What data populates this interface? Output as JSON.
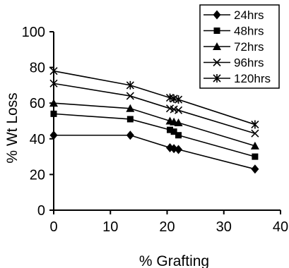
{
  "chart_data": {
    "type": "line",
    "xlabel": "% Grafting",
    "ylabel": "% Wt Loss",
    "xlim": [
      0,
      40
    ],
    "ylim": [
      0,
      100
    ],
    "xticks": [
      0,
      10,
      20,
      30,
      40
    ],
    "yticks": [
      0,
      20,
      40,
      60,
      80,
      100
    ],
    "grid": false,
    "legend_position": "top-right",
    "x": [
      0,
      13.5,
      20.5,
      21.2,
      22.0,
      35.5
    ],
    "series": [
      {
        "name": "24hrs",
        "marker": "diamond",
        "values": [
          42,
          42,
          35,
          34.5,
          34,
          23
        ]
      },
      {
        "name": "48hrs",
        "marker": "square",
        "values": [
          54,
          51,
          45,
          44,
          42,
          30
        ]
      },
      {
        "name": "72hrs",
        "marker": "triangle",
        "values": [
          60,
          57,
          50,
          49.5,
          49,
          36
        ]
      },
      {
        "name": "96hrs",
        "marker": "x",
        "values": [
          71,
          64,
          57,
          56.5,
          56,
          43
        ]
      },
      {
        "name": "120hrs",
        "marker": "star",
        "values": [
          78,
          70,
          63,
          62.5,
          62,
          48
        ]
      }
    ]
  }
}
